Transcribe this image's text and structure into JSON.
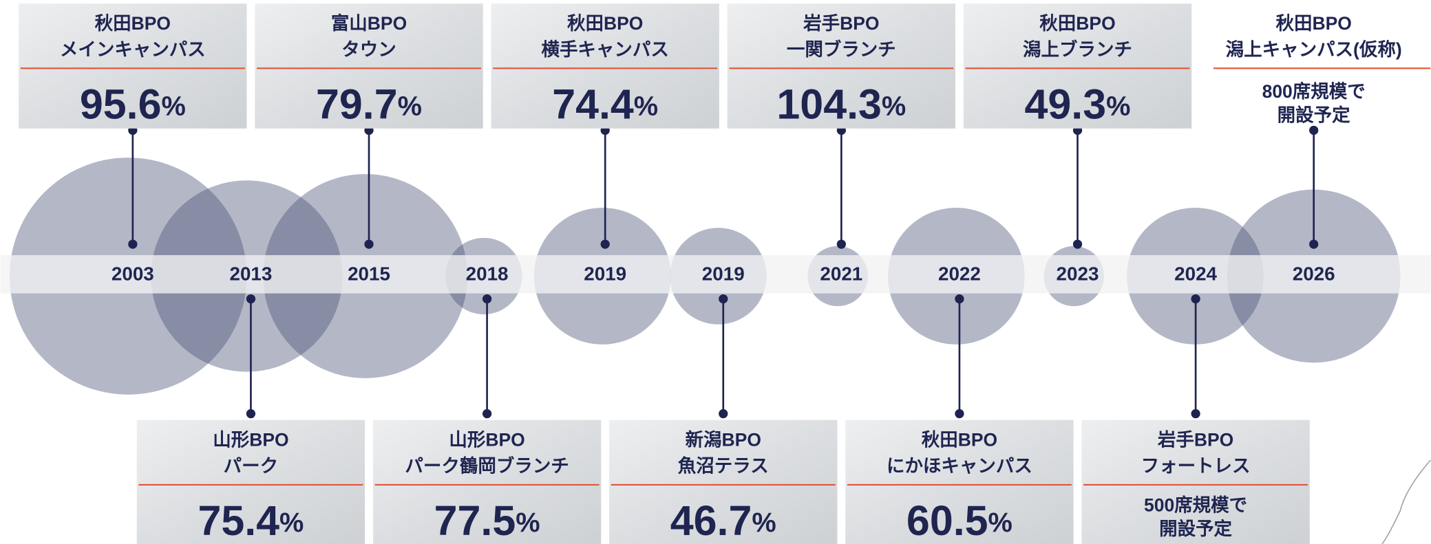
{
  "nodes": [
    {
      "year": "2003",
      "name": [
        "秋田BPO",
        "メインキャンパス"
      ],
      "rate": {
        "value": "95.6",
        "unit": "%"
      }
    },
    {
      "year": "2013",
      "name": [
        "山形BPO",
        "パーク"
      ],
      "rate": {
        "value": "75.4",
        "unit": "%"
      }
    },
    {
      "year": "2015",
      "name": [
        "富山BPO",
        "タウン"
      ],
      "rate": {
        "value": "79.7",
        "unit": "%"
      }
    },
    {
      "year": "2018",
      "name": [
        "山形BPO",
        "パーク鶴岡ブランチ"
      ],
      "rate": {
        "value": "77.5",
        "unit": "%"
      }
    },
    {
      "year": "2019",
      "name": [
        "秋田BPO",
        "横手キャンパス"
      ],
      "rate": {
        "value": "74.4",
        "unit": "%"
      }
    },
    {
      "year": "2019",
      "name": [
        "新潟BPO",
        "魚沼テラス"
      ],
      "rate": {
        "value": "46.7",
        "unit": "%"
      }
    },
    {
      "year": "2021",
      "name": [
        "岩手BPO",
        "一関ブランチ"
      ],
      "rate": {
        "value": "104.3",
        "unit": "%"
      }
    },
    {
      "year": "2022",
      "name": [
        "秋田BPO",
        "にかほキャンパス"
      ],
      "rate": {
        "value": "60.5",
        "unit": "%"
      }
    },
    {
      "year": "2023",
      "name": [
        "秋田BPO",
        "潟上ブランチ"
      ],
      "rate": {
        "value": "49.3",
        "unit": "%"
      }
    },
    {
      "year": "2024",
      "name": [
        "岩手BPO",
        "フォートレス"
      ],
      "note": [
        "500席規模で",
        "開設予定"
      ]
    },
    {
      "year": "2026",
      "name": [
        "秋田BPO",
        "潟上キャンパス(仮称)"
      ],
      "note": [
        "800席規模で",
        "開設予定"
      ]
    }
  ]
}
